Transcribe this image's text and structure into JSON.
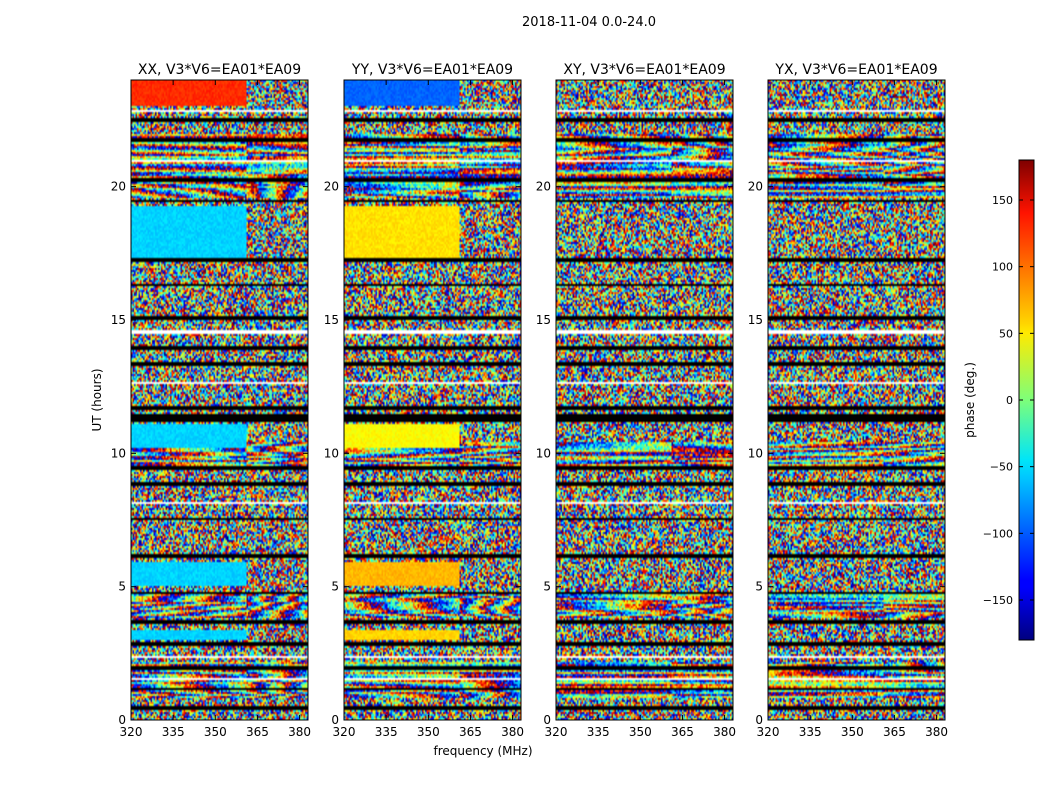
{
  "chart_data": {
    "type": "heatmap",
    "title": "2018-11-04 0.0-24.0",
    "xlabel": "frequency (MHz)",
    "ylabel": "UT (hours)",
    "xlim": [
      320,
      383
    ],
    "ylim": [
      0,
      24
    ],
    "x_ticks": [
      320,
      335,
      350,
      365,
      380
    ],
    "y_ticks": [
      0,
      5,
      10,
      15,
      20
    ],
    "panels": [
      {
        "title": "XX, V3*V6=EA01*EA09",
        "signal": "XX"
      },
      {
        "title": "YY, V3*V6=EA01*EA09",
        "signal": "YY"
      },
      {
        "title": "XY, V3*V6=EA01*EA09",
        "signal": "XY"
      },
      {
        "title": "YX, V3*V6=EA01*EA09",
        "signal": "YX"
      }
    ],
    "colorbar": {
      "label": "phase (deg.)",
      "colormap": "jet",
      "range": [
        -180,
        180
      ],
      "ticks": [
        -150,
        -100,
        -50,
        0,
        50,
        100,
        150
      ],
      "tick_labels": [
        "−150",
        "−100",
        "−50",
        "0",
        "50",
        "100",
        "150"
      ]
    },
    "phase_features": {
      "XX": {
        "calibrator_hours": [
          [
            23.0,
            24.0
          ],
          [
            17.3,
            19.3
          ],
          [
            10.2,
            11.1
          ],
          [
            5.0,
            5.9
          ],
          [
            3.0,
            3.4
          ]
        ],
        "calibrator_phase_deg": {
          "23.0-24.0": 120,
          "17.3-19.3": -60,
          "10.2-11.1": -60,
          "5.0-5.9": -60,
          "3.0-3.4": -60
        },
        "band_edge_mhz": 361
      },
      "YY": {
        "calibrator_hours": [
          [
            23.0,
            24.0
          ],
          [
            17.3,
            19.3
          ],
          [
            10.2,
            11.1
          ],
          [
            5.0,
            5.9
          ],
          [
            3.0,
            3.4
          ]
        ],
        "calibrator_phase_deg": {
          "23.0-24.0": -100,
          "17.3-19.3": 55,
          "10.2-11.1": 45,
          "5.0-5.9": 70,
          "3.0-3.4": 60
        },
        "band_edge_mhz": 361
      }
    },
    "data_gap_hours": [
      [
        22.4,
        22.55
      ],
      [
        21.7,
        21.8
      ],
      [
        20.2,
        20.3
      ],
      [
        19.4,
        19.5
      ],
      [
        17.15,
        17.3
      ],
      [
        16.3,
        16.38
      ],
      [
        15.0,
        15.15
      ],
      [
        13.9,
        14.0
      ],
      [
        13.3,
        13.4
      ],
      [
        11.2,
        11.45
      ],
      [
        11.6,
        11.8
      ],
      [
        9.4,
        9.5
      ],
      [
        8.8,
        8.9
      ],
      [
        7.5,
        7.6
      ],
      [
        6.1,
        6.2
      ],
      [
        4.7,
        4.8
      ],
      [
        3.6,
        3.75
      ],
      [
        2.8,
        2.9
      ],
      [
        1.9,
        2.0
      ],
      [
        1.1,
        1.2
      ],
      [
        0.4,
        0.5
      ]
    ],
    "blank_gap_hours": [
      [
        22.8,
        22.9
      ],
      [
        20.9,
        21.0
      ],
      [
        14.5,
        14.6
      ],
      [
        12.6,
        12.7
      ],
      [
        8.1,
        8.2
      ],
      [
        2.3,
        2.4
      ],
      [
        1.5,
        1.55
      ]
    ]
  }
}
